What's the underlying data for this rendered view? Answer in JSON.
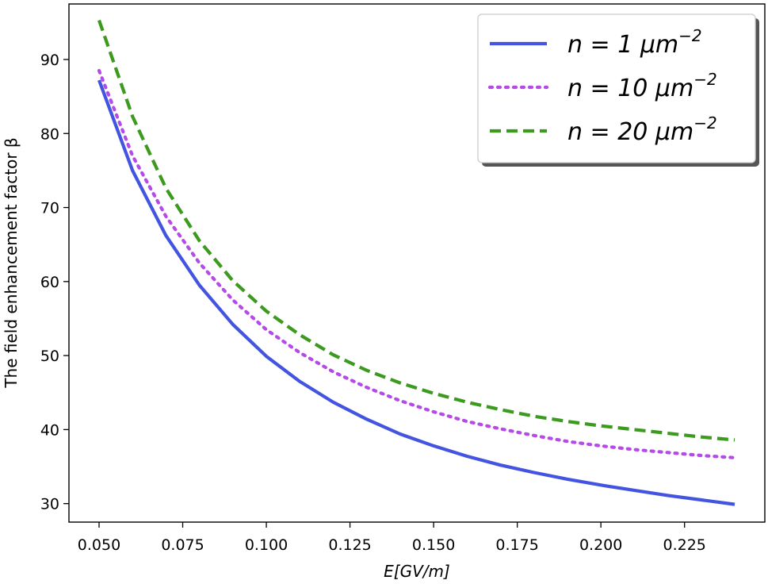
{
  "chart_data": {
    "type": "line",
    "title": "",
    "xlabel": "E[GV/m]",
    "ylabel": "The field enhancement factor β",
    "xlim": [
      0.041,
      0.249
    ],
    "ylim": [
      27.5,
      97.5
    ],
    "xticks": [
      0.05,
      0.075,
      0.1,
      0.125,
      0.15,
      0.175,
      0.2,
      0.225
    ],
    "xtick_labels": [
      "0.050",
      "0.075",
      "0.100",
      "0.125",
      "0.150",
      "0.175",
      "0.200",
      "0.225"
    ],
    "yticks": [
      30,
      40,
      50,
      60,
      70,
      80,
      90
    ],
    "ytick_labels": [
      "30",
      "40",
      "50",
      "60",
      "70",
      "80",
      "90"
    ],
    "grid": false,
    "legend_position": "top-right",
    "x": [
      0.05,
      0.06,
      0.07,
      0.08,
      0.09,
      0.1,
      0.11,
      0.12,
      0.13,
      0.14,
      0.15,
      0.16,
      0.17,
      0.18,
      0.19,
      0.2,
      0.21,
      0.22,
      0.23,
      0.24
    ],
    "series": [
      {
        "name": "n = 1 μm",
        "exponent": "−2",
        "color": "#4355e0",
        "style": "solid",
        "values": [
          87.2,
          75.0,
          66.2,
          59.5,
          54.2,
          49.9,
          46.5,
          43.7,
          41.4,
          39.4,
          37.8,
          36.4,
          35.2,
          34.2,
          33.3,
          32.5,
          31.8,
          31.1,
          30.5,
          29.9
        ]
      },
      {
        "name": "n = 10 μm",
        "exponent": "−2",
        "color": "#b64ae8",
        "style": "dotted",
        "values": [
          88.5,
          77.0,
          68.8,
          62.5,
          57.5,
          53.5,
          50.4,
          47.8,
          45.7,
          43.9,
          42.4,
          41.1,
          40.1,
          39.2,
          38.4,
          37.8,
          37.3,
          36.9,
          36.5,
          36.2
        ]
      },
      {
        "name": "n = 20 μm",
        "exponent": "−2",
        "color": "#3c9b1f",
        "style": "dashed",
        "values": [
          95.3,
          82.3,
          72.6,
          65.5,
          60.1,
          56.0,
          52.8,
          50.1,
          48.0,
          46.3,
          44.9,
          43.7,
          42.7,
          41.8,
          41.1,
          40.5,
          40.0,
          39.5,
          39.0,
          38.6
        ]
      }
    ]
  }
}
